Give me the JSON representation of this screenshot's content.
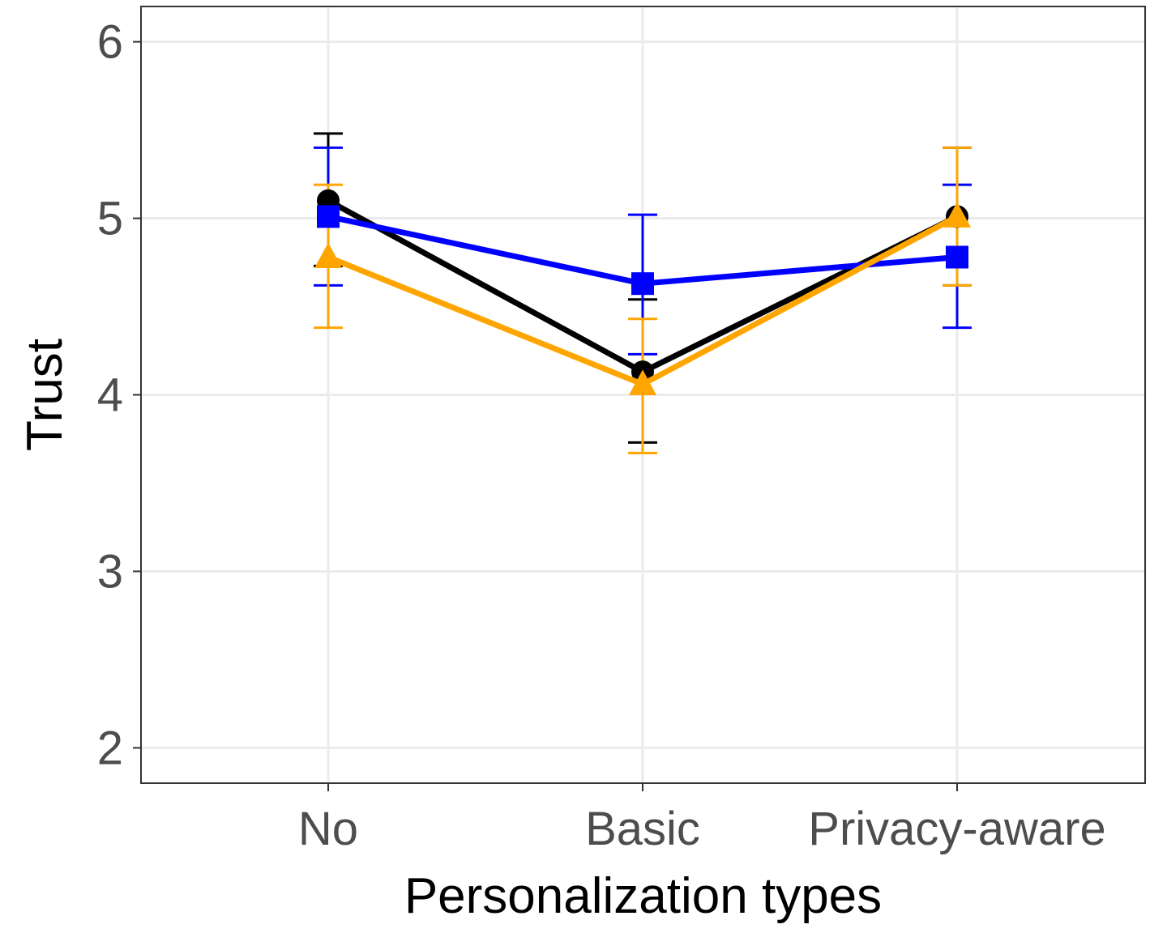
{
  "chart_data": {
    "type": "line",
    "title": "",
    "xlabel": "Personalization types",
    "ylabel": "Trust",
    "categories": [
      "No",
      "Basic",
      "Privacy-aware"
    ],
    "ylim": [
      1.8,
      6.2
    ],
    "yticks": [
      2,
      3,
      4,
      5,
      6
    ],
    "ytick_labels": [
      "2",
      "3",
      "4",
      "5",
      "6"
    ],
    "grid": true,
    "legend": "none",
    "series": [
      {
        "name": "black-circle",
        "color": "#000000",
        "marker": "circle",
        "values": [
          5.1,
          4.13,
          5.01
        ],
        "err_low": [
          4.73,
          3.73,
          4.62
        ],
        "err_high": [
          5.48,
          4.54,
          5.4
        ]
      },
      {
        "name": "blue-square",
        "color": "#0000ff",
        "marker": "square",
        "values": [
          5.01,
          4.63,
          4.78
        ],
        "err_low": [
          4.62,
          4.23,
          4.38
        ],
        "err_high": [
          5.4,
          5.02,
          5.19
        ]
      },
      {
        "name": "orange-triangle",
        "color": "#ffa500",
        "marker": "triangle",
        "values": [
          4.78,
          4.06,
          5.01
        ],
        "err_low": [
          4.38,
          3.67,
          4.62
        ],
        "err_high": [
          5.19,
          4.43,
          5.4
        ]
      }
    ]
  }
}
